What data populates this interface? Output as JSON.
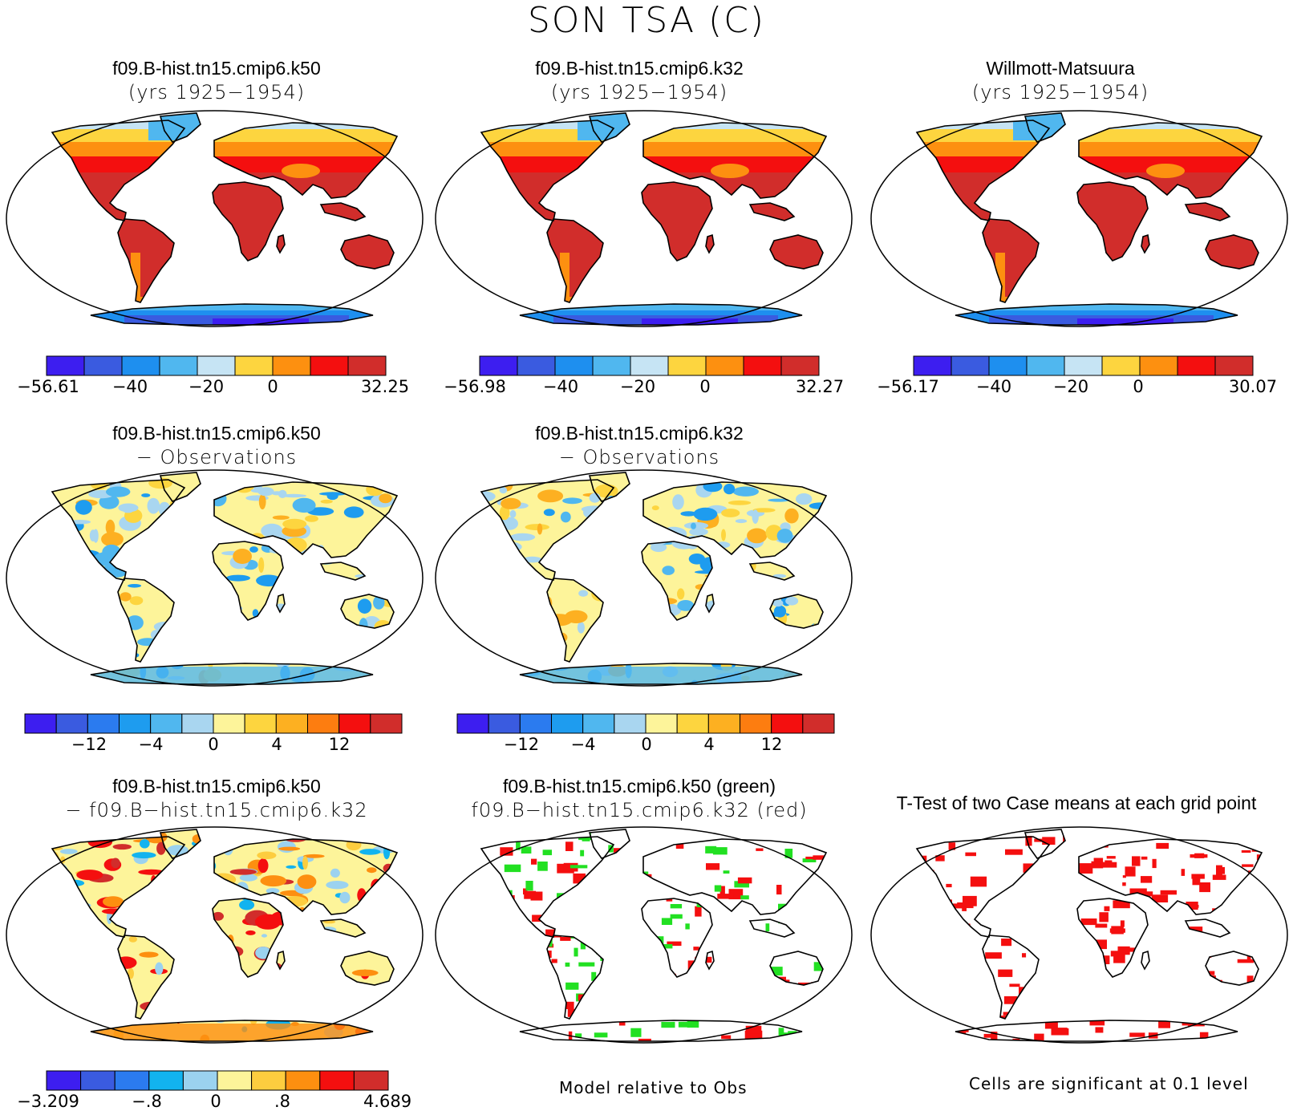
{
  "figure": {
    "title": "SON TSA (C)"
  },
  "colors": {
    "abs_scale": [
      "#3d1ef0",
      "#3a5be0",
      "#1e8fef",
      "#50b7ef",
      "#c6e4f4",
      "#fdd53f",
      "#fd9010",
      "#f40f0f",
      "#d12d2b"
    ],
    "diff_scale": [
      "#3d1ef0",
      "#3a5be0",
      "#2b7bef",
      "#1e9cef",
      "#50b7ef",
      "#a9d6f0",
      "#fdf49a",
      "#fdd53f",
      "#fdb021",
      "#fd7d10",
      "#f40f0f",
      "#d12d2b"
    ],
    "case_diff_scale": [
      "#3d1ef0",
      "#3a5be0",
      "#2b7bef",
      "#12b3ef",
      "#9bd2ef",
      "#fdf49a",
      "#fdcd3f",
      "#fd8f10",
      "#f40f0f",
      "#d12d2b"
    ],
    "land_green": "#22e022",
    "land_red": "#f40f0f"
  },
  "panels": [
    {
      "id": "p1",
      "title_line1": "f09.B-hist.tn15.cmip6.k50",
      "title_line2": "(yrs 1925−1954)",
      "colorbar_labels": [
        "−56.61",
        "−40",
        "−20",
        "0",
        "32.25"
      ],
      "style": "abs"
    },
    {
      "id": "p2",
      "title_line1": "f09.B-hist.tn15.cmip6.k32",
      "title_line2": "(yrs 1925−1954)",
      "colorbar_labels": [
        "−56.98",
        "−40",
        "−20",
        "0",
        "32.27"
      ],
      "style": "abs"
    },
    {
      "id": "p3",
      "title_line1": "Willmott-Matsuura",
      "title_line2": "(yrs 1925−1954)",
      "colorbar_labels": [
        "−56.17",
        "−40",
        "−20",
        "0",
        "30.07"
      ],
      "style": "abs"
    },
    {
      "id": "p4",
      "title_line1": "f09.B-hist.tn15.cmip6.k50",
      "title_line2": "− Observations",
      "colorbar_labels": [
        "−12",
        "−4",
        "0",
        "4",
        "12"
      ],
      "style": "diff"
    },
    {
      "id": "p5",
      "title_line1": "f09.B-hist.tn15.cmip6.k32",
      "title_line2": "− Observations",
      "colorbar_labels": [
        "−12",
        "−4",
        "0",
        "4",
        "12"
      ],
      "style": "diff"
    },
    {
      "id": "p6",
      "title_line1": "f09.B-hist.tn15.cmip6.k50",
      "title_line2": "− f09.B−hist.tn15.cmip6.k32",
      "colorbar_labels": [
        "−3.209",
        "−.8",
        "0",
        ".8",
        "4.689"
      ],
      "style": "case_diff"
    },
    {
      "id": "p7",
      "title_line1": "f09.B-hist.tn15.cmip6.k50 (green)",
      "title_line2": "f09.B−hist.tn15.cmip6.k32 (red)",
      "footnote": "Model relative to Obs",
      "style": "green_red"
    },
    {
      "id": "p8",
      "title_line1": "T-Test of two Case means at each grid point",
      "footnote": "Cells are significant at 0.1 level",
      "style": "ttest"
    }
  ]
}
